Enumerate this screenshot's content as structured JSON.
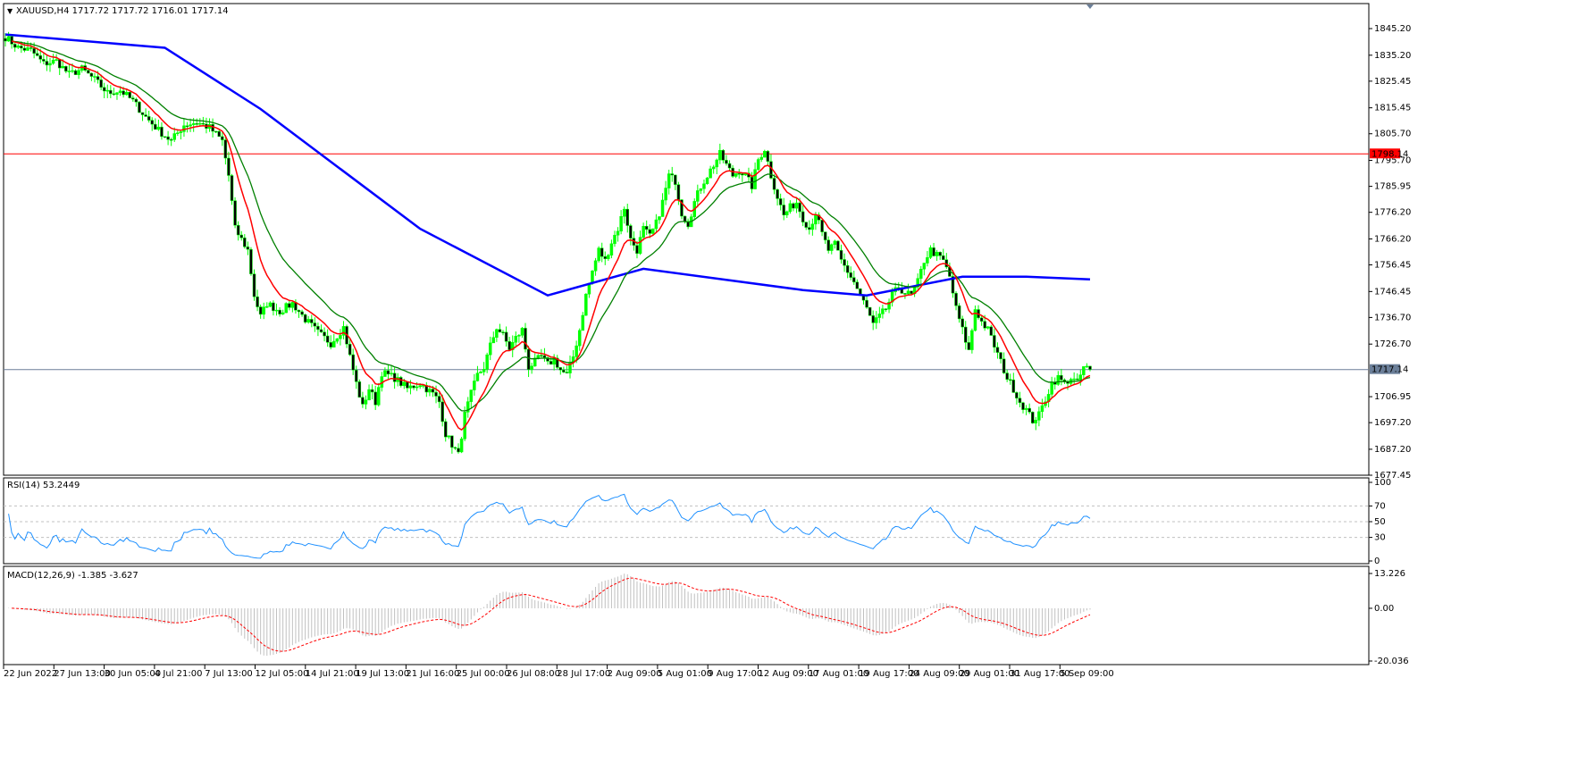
{
  "window": {
    "symbol_info": "XAUUSD,H4  1717.72 1717.72 1716.01 1717.14",
    "menu_glyph": "▼"
  },
  "colors": {
    "candle": "#00ff00",
    "ma_fast": "#ff0000",
    "ma_mid": "#008000",
    "ma_slow": "#0000ff",
    "resistance": "#ff0000",
    "current_price": "#6b7f99",
    "rsi": "#1e90ff",
    "macd_hist": "#c0c0c0",
    "macd_signal": "#ff0000",
    "grid_dash": "#c0c0c0"
  },
  "chart_data": [
    {
      "type": "candlestick",
      "name": "price",
      "ylim": [
        1677.45,
        1853.0
      ],
      "y_ticks": [
        "1845.20",
        "1835.20",
        "1825.45",
        "1815.45",
        "1805.70",
        "1795.70",
        "1785.95",
        "1776.20",
        "1766.20",
        "1756.45",
        "1746.45",
        "1736.70",
        "1726.70",
        "1706.95",
        "1697.20",
        "1687.20",
        "1677.45"
      ],
      "x_labels": [
        "22 Jun 2022",
        "27 Jun 13:00",
        "30 Jun 05:00",
        "4 Jul 21:00",
        "7 Jul 13:00",
        "12 Jul 05:00",
        "14 Jul 21:00",
        "19 Jul 13:00",
        "21 Jul 16:00",
        "25 Jul 00:00",
        "26 Jul 08:00",
        "28 Jul 17:00",
        "2 Aug 09:00",
        "5 Aug 01:00",
        "9 Aug 17:00",
        "12 Aug 09:00",
        "17 Aug 01:00",
        "19 Aug 17:00",
        "24 Aug 09:00",
        "29 Aug 01:00",
        "31 Aug 17:00",
        "5 Sep 09:00"
      ],
      "horizontal_lines": [
        {
          "label": "1798.14",
          "value": 1798.14
        },
        {
          "label": "1717.14",
          "value": 1717.14
        }
      ],
      "close_path": [
        [
          0,
          1842
        ],
        [
          4,
          1838
        ],
        [
          8,
          1837
        ],
        [
          12,
          1832
        ],
        [
          16,
          1833
        ],
        [
          20,
          1828
        ],
        [
          24,
          1830
        ],
        [
          28,
          1826
        ],
        [
          32,
          1821
        ],
        [
          36,
          1822
        ],
        [
          40,
          1818
        ],
        [
          44,
          1812
        ],
        [
          48,
          1807
        ],
        [
          52,
          1803
        ],
        [
          56,
          1809
        ],
        [
          60,
          1810
        ],
        [
          64,
          1808
        ],
        [
          68,
          1803
        ],
        [
          70,
          1790
        ],
        [
          72,
          1770
        ],
        [
          74,
          1766
        ],
        [
          76,
          1762
        ],
        [
          78,
          1745
        ],
        [
          80,
          1737
        ],
        [
          82,
          1742
        ],
        [
          86,
          1739
        ],
        [
          90,
          1742
        ],
        [
          94,
          1736
        ],
        [
          98,
          1731
        ],
        [
          102,
          1727
        ],
        [
          106,
          1733
        ],
        [
          108,
          1722
        ],
        [
          110,
          1712
        ],
        [
          112,
          1703
        ],
        [
          114,
          1710
        ],
        [
          116,
          1705
        ],
        [
          118,
          1716
        ],
        [
          122,
          1714
        ],
        [
          126,
          1710
        ],
        [
          130,
          1712
        ],
        [
          134,
          1708
        ],
        [
          136,
          1705
        ],
        [
          138,
          1693
        ],
        [
          140,
          1689
        ],
        [
          142,
          1685
        ],
        [
          144,
          1700
        ],
        [
          146,
          1708
        ],
        [
          148,
          1715
        ],
        [
          150,
          1718
        ],
        [
          152,
          1726
        ],
        [
          154,
          1733
        ],
        [
          156,
          1730
        ],
        [
          158,
          1725
        ],
        [
          160,
          1729
        ],
        [
          162,
          1732
        ],
        [
          164,
          1718
        ],
        [
          166,
          1720
        ],
        [
          168,
          1722
        ],
        [
          170,
          1719
        ],
        [
          172,
          1721
        ],
        [
          174,
          1717
        ],
        [
          176,
          1715
        ],
        [
          178,
          1722
        ],
        [
          180,
          1732
        ],
        [
          182,
          1745
        ],
        [
          184,
          1754
        ],
        [
          186,
          1762
        ],
        [
          188,
          1758
        ],
        [
          190,
          1765
        ],
        [
          192,
          1770
        ],
        [
          194,
          1778
        ],
        [
          196,
          1766
        ],
        [
          198,
          1762
        ],
        [
          200,
          1770
        ],
        [
          202,
          1767
        ],
        [
          204,
          1772
        ],
        [
          206,
          1780
        ],
        [
          208,
          1790
        ],
        [
          210,
          1788
        ],
        [
          212,
          1776
        ],
        [
          214,
          1772
        ],
        [
          216,
          1780
        ],
        [
          218,
          1786
        ],
        [
          220,
          1790
        ],
        [
          222,
          1794
        ],
        [
          224,
          1798
        ],
        [
          226,
          1794
        ],
        [
          228,
          1790
        ],
        [
          230,
          1792
        ],
        [
          232,
          1790
        ],
        [
          234,
          1786
        ],
        [
          236,
          1796
        ],
        [
          238,
          1800
        ],
        [
          240,
          1790
        ],
        [
          242,
          1782
        ],
        [
          244,
          1775
        ],
        [
          246,
          1778
        ],
        [
          248,
          1780
        ],
        [
          250,
          1774
        ],
        [
          252,
          1770
        ],
        [
          254,
          1776
        ],
        [
          256,
          1768
        ],
        [
          258,
          1762
        ],
        [
          260,
          1764
        ],
        [
          262,
          1758
        ],
        [
          264,
          1754
        ],
        [
          266,
          1750
        ],
        [
          268,
          1745
        ],
        [
          270,
          1740
        ],
        [
          272,
          1734
        ],
        [
          274,
          1737
        ],
        [
          276,
          1740
        ],
        [
          278,
          1745
        ],
        [
          280,
          1748
        ],
        [
          282,
          1746
        ],
        [
          284,
          1745
        ],
        [
          286,
          1750
        ],
        [
          288,
          1758
        ],
        [
          290,
          1762
        ],
        [
          292,
          1760
        ],
        [
          294,
          1758
        ],
        [
          296,
          1752
        ],
        [
          298,
          1740
        ],
        [
          300,
          1732
        ],
        [
          302,
          1724
        ],
        [
          304,
          1740
        ],
        [
          306,
          1735
        ],
        [
          308,
          1732
        ],
        [
          310,
          1726
        ],
        [
          312,
          1720
        ],
        [
          314,
          1714
        ],
        [
          316,
          1710
        ],
        [
          318,
          1705
        ],
        [
          320,
          1702
        ],
        [
          322,
          1698
        ],
        [
          324,
          1700
        ],
        [
          326,
          1706
        ],
        [
          328,
          1712
        ],
        [
          330,
          1714
        ],
        [
          332,
          1712
        ],
        [
          334,
          1714
        ],
        [
          336,
          1712
        ],
        [
          338,
          1718
        ],
        [
          340,
          1717.14
        ]
      ]
    },
    {
      "type": "line",
      "name": "rsi",
      "title": "RSI(14) 53.2449",
      "ylim": [
        0,
        100
      ],
      "y_ticks": [
        "100",
        "70",
        "50",
        "30",
        "0"
      ],
      "levels": [
        70,
        50,
        30
      ]
    },
    {
      "type": "bar+line",
      "name": "macd",
      "title": "MACD(12,26,9) -1.385 -3.627",
      "ylim": [
        -20.036,
        13.226
      ],
      "y_ticks": [
        "13.226",
        "0.00",
        "-20.036"
      ]
    }
  ]
}
